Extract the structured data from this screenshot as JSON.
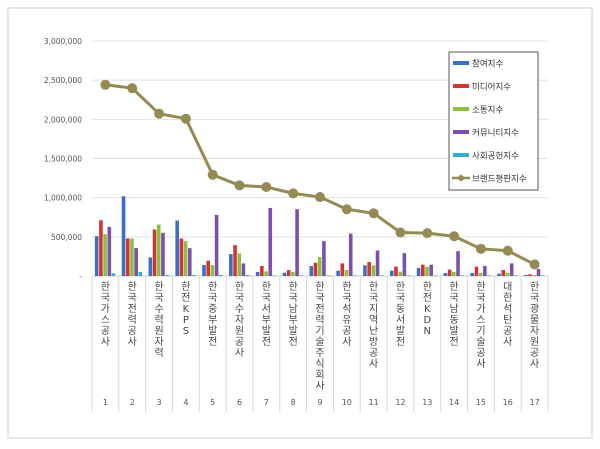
{
  "chart_data": {
    "type": "bar",
    "title": "",
    "xlabel": "",
    "ylabel": "",
    "ylim": [
      0,
      3000000
    ],
    "yticks": [
      "-",
      "500,000",
      "1,000,000",
      "1,500,000",
      "2,000,000",
      "2,500,000",
      "3,000,000"
    ],
    "grid": true,
    "legend_position": "top-right",
    "categories": [
      "한국가스공사",
      "한국전력공사",
      "한국수력원자력",
      "한전KPS",
      "한국중부발전",
      "한국수자원공사",
      "한국서부발전",
      "한국남부발전",
      "한국전력기술주식회사",
      "한국석유공사",
      "한국지역난방공사",
      "한국동서발전",
      "한전KDN",
      "한국남동발전",
      "한국가스기술공사",
      "대한석탄공사",
      "한국광물자원공사"
    ],
    "ranks": [
      "1",
      "2",
      "3",
      "4",
      "5",
      "6",
      "7",
      "8",
      "9",
      "10",
      "11",
      "12",
      "13",
      "14",
      "15",
      "16",
      "17"
    ],
    "series": [
      {
        "name": "참여지수",
        "type": "bar",
        "color": "#3a6fc4",
        "values": [
          508000,
          1017000,
          237000,
          708000,
          140000,
          280000,
          51000,
          42000,
          127000,
          68000,
          136000,
          68000,
          102000,
          38000,
          38000,
          30000,
          13000
        ]
      },
      {
        "name": "미디어지수",
        "type": "bar",
        "color": "#d03535",
        "values": [
          712000,
          479000,
          593000,
          479000,
          195000,
          394000,
          127000,
          76000,
          169000,
          161000,
          178000,
          119000,
          144000,
          81000,
          119000,
          76000,
          21000
        ]
      },
      {
        "name": "소통지수",
        "type": "bar",
        "color": "#8dbf3e",
        "values": [
          534000,
          479000,
          657000,
          445000,
          140000,
          288000,
          59000,
          51000,
          242000,
          76000,
          136000,
          55000,
          119000,
          51000,
          38000,
          42000,
          13000
        ]
      },
      {
        "name": "커뮤니티지수",
        "type": "bar",
        "color": "#7b4fae",
        "values": [
          627000,
          356000,
          551000,
          356000,
          780000,
          161000,
          869000,
          852000,
          445000,
          542000,
          326000,
          292000,
          144000,
          318000,
          127000,
          161000,
          89000
        ]
      },
      {
        "name": "사회공헌지수",
        "type": "bar",
        "color": "#2fb0d0",
        "values": [
          34000,
          51000,
          13000,
          13000,
          13000,
          13000,
          8000,
          8000,
          8000,
          8000,
          8000,
          8000,
          8000,
          8000,
          8000,
          8000,
          8000
        ]
      },
      {
        "name": "브랜드평판지수",
        "type": "line",
        "color": "#948a54",
        "values": [
          2441000,
          2398000,
          2072000,
          2008000,
          1292000,
          1157000,
          1136000,
          1055000,
          1008000,
          852000,
          801000,
          555000,
          547000,
          508000,
          347000,
          322000,
          148000
        ]
      }
    ]
  }
}
